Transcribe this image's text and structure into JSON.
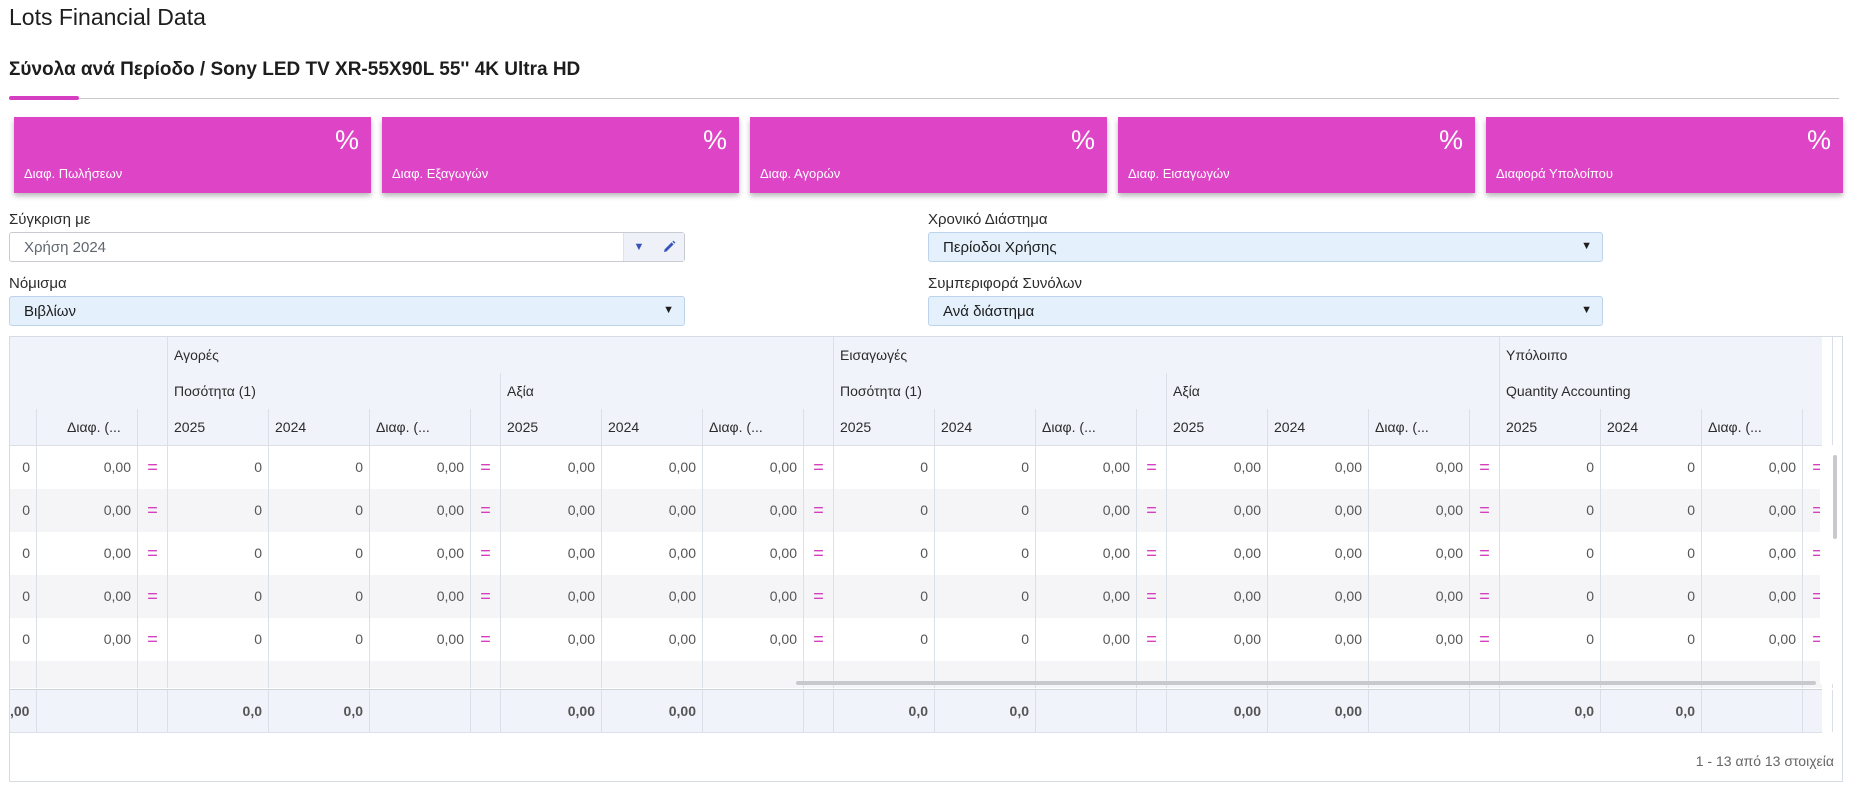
{
  "page": {
    "title": "Lots Financial Data"
  },
  "tab": {
    "label": "Σύνολα ανά Περίοδο / Sony LED TV XR-55X90L 55'' 4K Ultra HD"
  },
  "cards": [
    {
      "symbol": "%",
      "label": "Διαφ. Πωλήσεων"
    },
    {
      "symbol": "%",
      "label": "Διαφ. Εξαγωγών"
    },
    {
      "symbol": "%",
      "label": "Διαφ. Αγορών"
    },
    {
      "symbol": "%",
      "label": "Διαφ. Εισαγωγών"
    },
    {
      "symbol": "%",
      "label": "Διαφορά Υπολοίπου"
    }
  ],
  "form": {
    "compare": {
      "label": "Σύγκριση με",
      "value": "Χρήση 2024"
    },
    "period": {
      "label": "Χρονικό Διάστημα",
      "value": "Περίοδοι Χρήσης"
    },
    "currency": {
      "label": "Νόμισμα",
      "value": "Βιβλίων"
    },
    "totals": {
      "label": "Συμπεριφορά Συνόλων",
      "value": "Ανά διάστημα"
    }
  },
  "grid": {
    "groups": {
      "purchases": "Αγορές",
      "imports": "Εισαγωγές",
      "balance": "Υπόλοιπο"
    },
    "subgroups": {
      "qty": "Ποσότητα (1)",
      "value": "Αξία",
      "qty_acc": "Quantity Accounting"
    },
    "cols": {
      "y2025": "2025",
      "y2024": "2024",
      "diff": "Διαφ. (..."
    },
    "row_vals": {
      "int": "0",
      "dec": "0,00",
      "eq": "="
    },
    "footer": {
      "first": ",00",
      "q": "0,0",
      "d": "0,00"
    },
    "pager": "1 - 13 από 13 στοιχεία"
  },
  "colors": {
    "accent": "#dd45c6",
    "header_bg": "#f1f3fb",
    "select_bg": "#e4f0fc"
  },
  "icons": {
    "dropdown": "chevron-down-icon",
    "edit": "pencil-icon"
  }
}
